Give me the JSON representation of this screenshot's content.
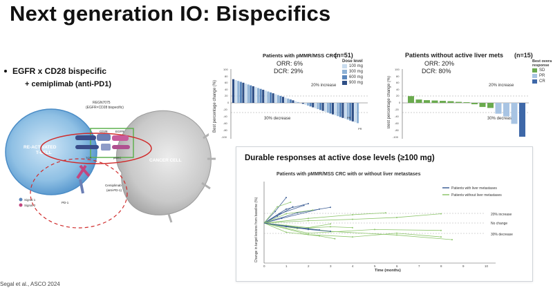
{
  "title": "Next generation IO: Bispecifics",
  "bullet": {
    "main": "EGFR x CD28 bispecific",
    "sub": "+ cemiplimab (anti-PD1)"
  },
  "diagram": {
    "drug_label": "REGN7075\n(EGFR×CD28 bispecific)",
    "activated_tcell": "RE-ACTIVATED\nT-CELL",
    "cancer_cell": "CANCER CELL",
    "egfr": "EGFR",
    "cd28": "CD28",
    "tcr": "TCR",
    "mhc": "pMHC",
    "pd1": "PD-1",
    "pdl1": "PD-L1",
    "cemiplimab": "Cemiplimab\n(anti-PD-1)",
    "signal1": "Signal 1",
    "signal2": "Signal 2"
  },
  "left_waterfall": {
    "title": "Patients with pMMR/MSS CRC",
    "n_label": "(n=51)",
    "orr": "ORR: 6%",
    "dcr": "DCR: 29%",
    "ylabel": "Best percentage change (%)",
    "increase_label": "20% increase",
    "decrease_label": "30% decrease",
    "pr_label_1": "PR",
    "pr_label_2": "PR",
    "legend_title": "Dose level",
    "legend": [
      {
        "label": "100 mg",
        "color": "#c9dcee"
      },
      {
        "label": "300 mg",
        "color": "#8fb2d6"
      },
      {
        "label": "600 mg",
        "color": "#5a86bb"
      },
      {
        "label": "900 mg",
        "color": "#2f4f86"
      }
    ],
    "y_ticks": [
      "100",
      "80",
      "60",
      "40",
      "20",
      "0",
      "-20",
      "-40",
      "-60",
      "-80",
      "-100"
    ]
  },
  "right_waterfall": {
    "title": "Patients without active liver mets",
    "n_label": "(n=15)",
    "orr": "ORR: 20%",
    "dcr": "DCR: 80%",
    "ylabel": "Best percentage change (%)",
    "increase_label": "20% increase",
    "decrease_label": "30% decrease",
    "legend_title": "Best overa\nresponse",
    "legend": [
      {
        "label": "SD",
        "color": "#6aaa4e"
      },
      {
        "label": "PR",
        "color": "#a8c4e3"
      },
      {
        "label": "CR",
        "color": "#3e68a8"
      }
    ],
    "y_ticks": [
      "100",
      "80",
      "60",
      "40",
      "20",
      "0",
      "-20",
      "-40",
      "-60",
      "-80",
      "-100"
    ]
  },
  "durable": {
    "title": "Durable responses at active dose levels (≥100 mg)",
    "subtitle": "Patients with pMMR/MSS CRC with or without liver metastases",
    "ylabel": "Change in target lesions from baseline (%)",
    "xlabel": "Time (months)",
    "legend": [
      {
        "label": "Patients with liver metastases",
        "color": "#3e5f96"
      },
      {
        "label": "Patients without liver metastases",
        "color": "#8dc56b"
      }
    ],
    "ref_20": "20% increase",
    "ref_0": "No change",
    "ref_30": "30% decrease",
    "x_ticks": [
      "0",
      "1",
      "2",
      "3",
      "4",
      "5",
      "6",
      "7",
      "8",
      "9",
      "10"
    ]
  },
  "footer": "Segal et al., ASCO 2024"
}
